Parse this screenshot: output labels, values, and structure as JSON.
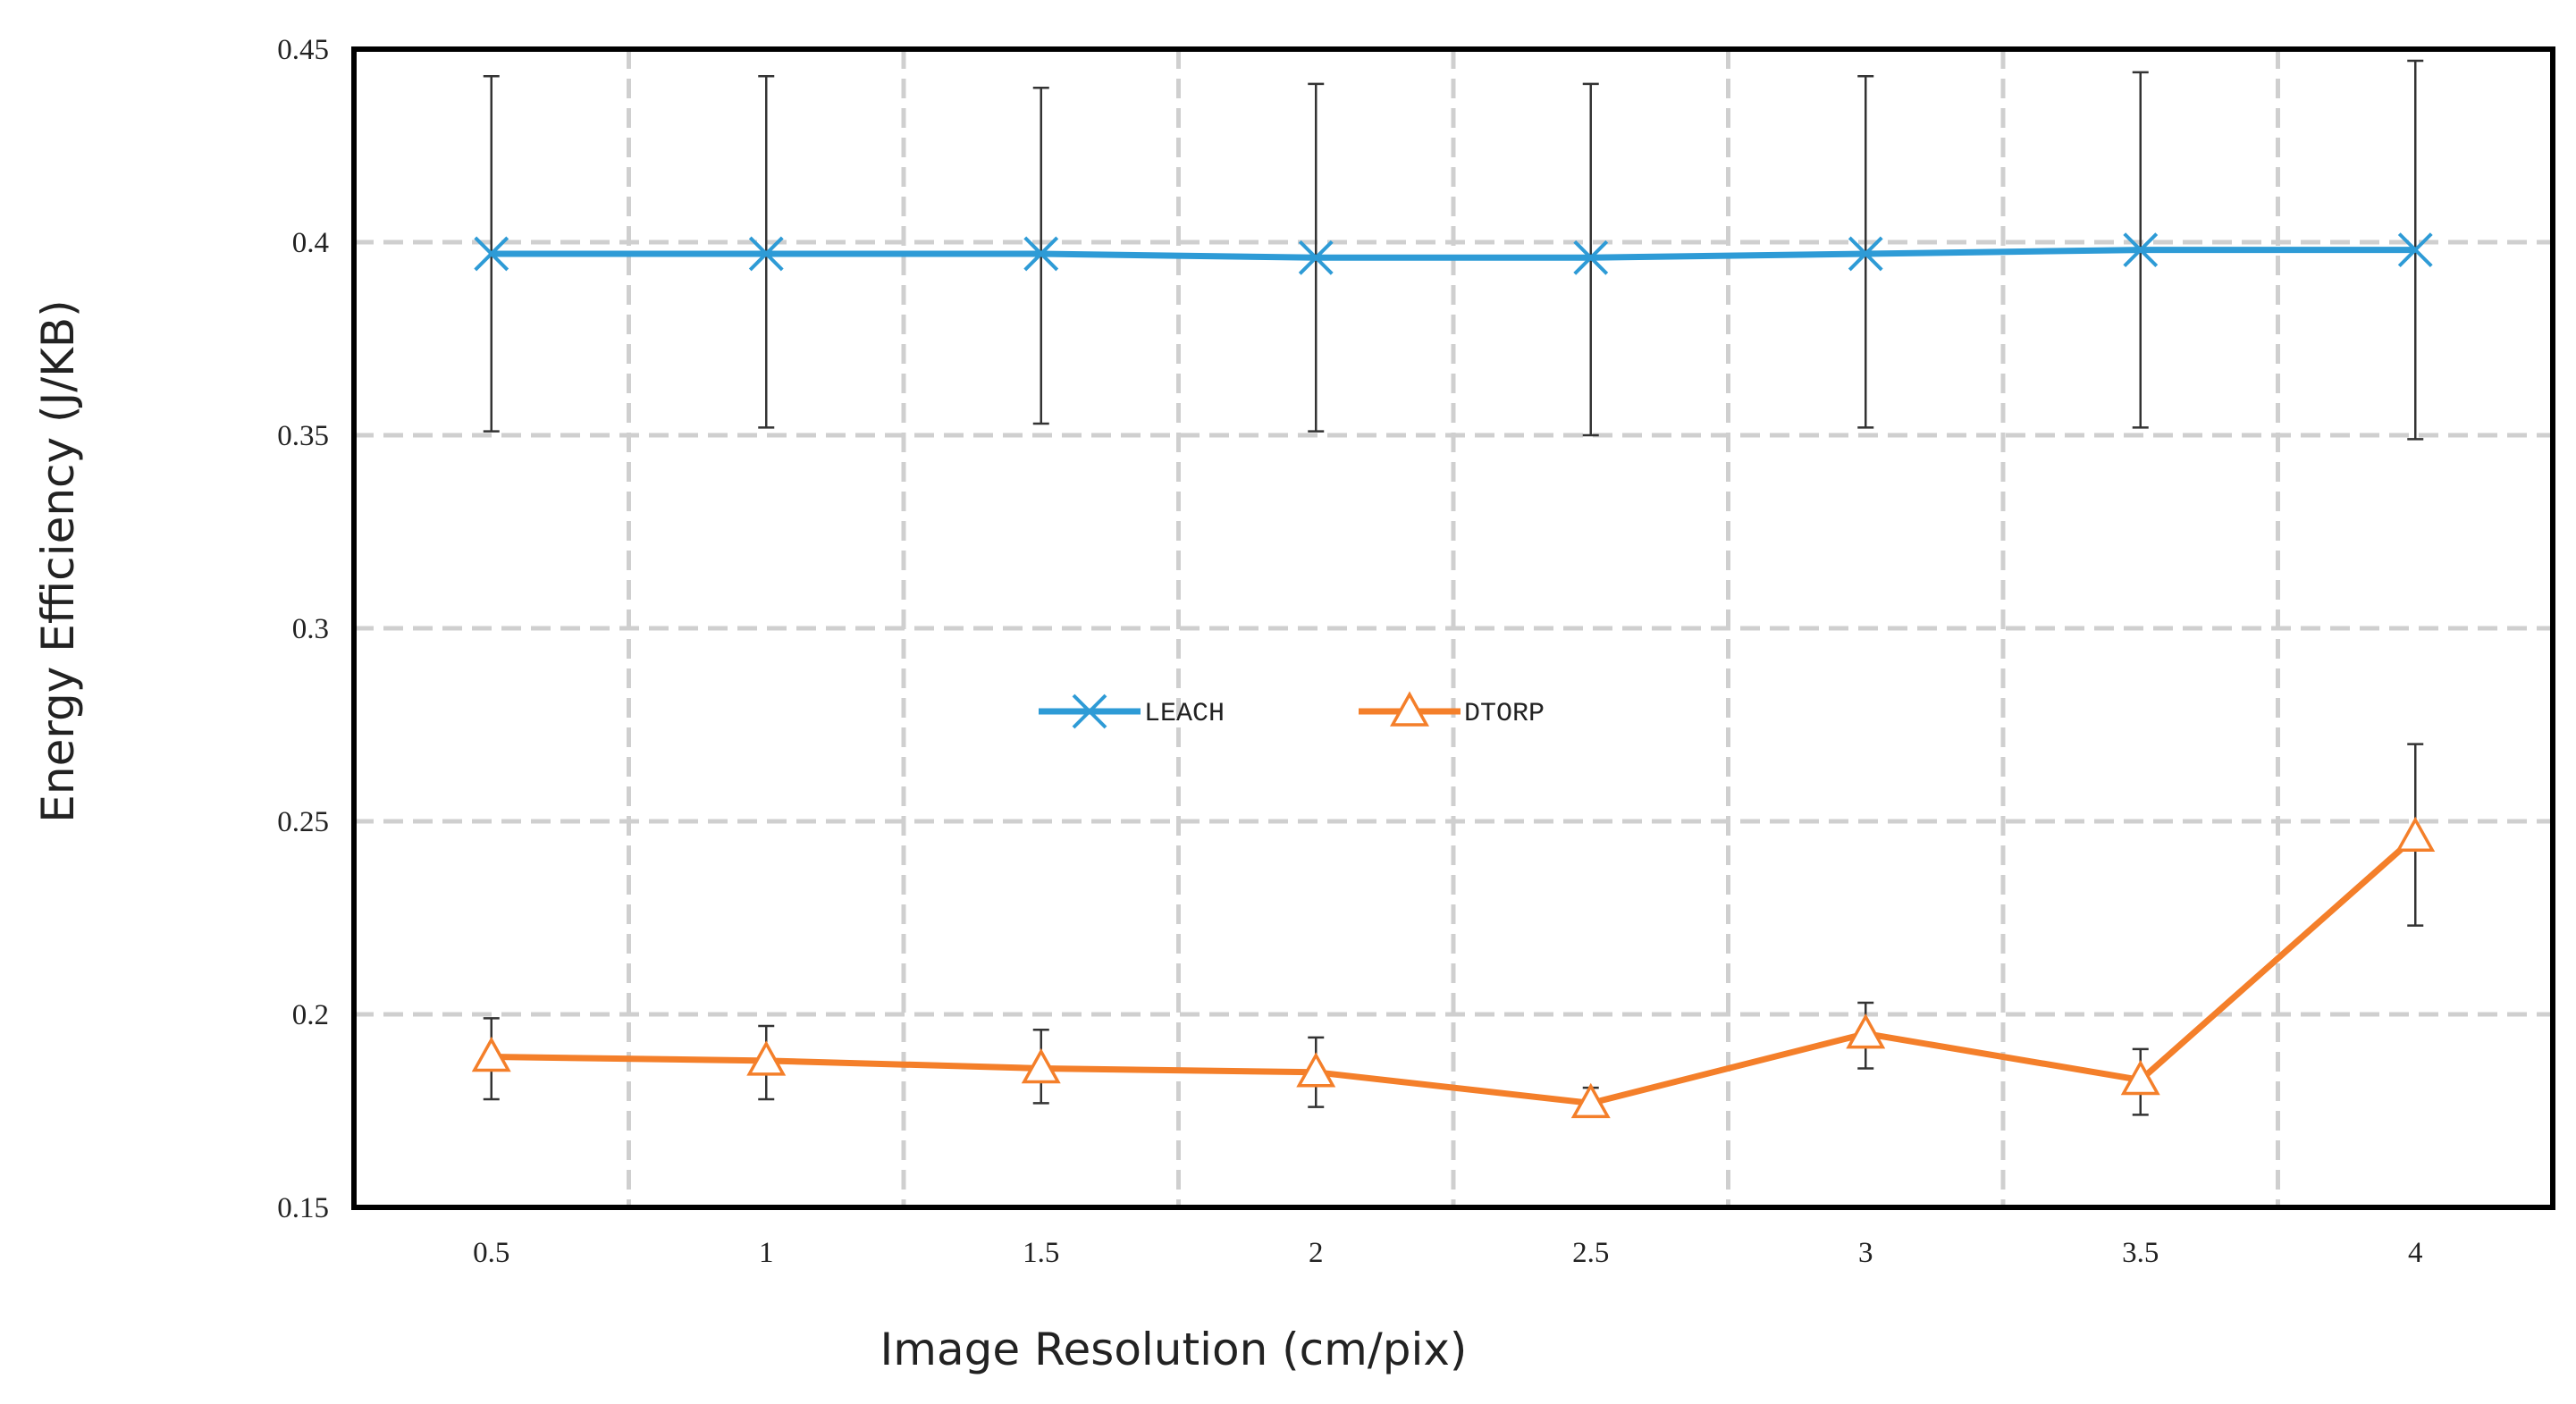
{
  "chart_data": {
    "type": "line",
    "title": "",
    "xlabel": "Image Resolution (cm/pix)",
    "ylabel": "Energy Efficiency (J/KB)",
    "categories": [
      "0.5",
      "1",
      "1.5",
      "2",
      "2.5",
      "3",
      "3.5",
      "4"
    ],
    "x": [
      0.5,
      1,
      1.5,
      2,
      2.5,
      3,
      3.5,
      4
    ],
    "ylim": [
      0.15,
      0.45
    ],
    "yticks": [
      "0.15",
      "0.2",
      "0.25",
      "0.3",
      "0.35",
      "0.4",
      "0.45"
    ],
    "ytick_values": [
      0.15,
      0.2,
      0.25,
      0.3,
      0.35,
      0.4,
      0.45
    ],
    "grid": true,
    "legend_position": "center",
    "series": [
      {
        "name": "LEACH",
        "color": "#2E9BD6",
        "marker": "x",
        "values": [
          0.397,
          0.397,
          0.397,
          0.396,
          0.396,
          0.397,
          0.398,
          0.398
        ],
        "error_low": [
          0.351,
          0.352,
          0.353,
          0.351,
          0.35,
          0.352,
          0.352,
          0.349
        ],
        "error_high": [
          0.443,
          0.443,
          0.44,
          0.441,
          0.441,
          0.443,
          0.444,
          0.447
        ]
      },
      {
        "name": "DTORP",
        "color": "#F47F2A",
        "marker": "triangle",
        "values": [
          0.189,
          0.188,
          0.186,
          0.185,
          0.177,
          0.195,
          0.183,
          0.246
        ],
        "error_low": [
          0.178,
          0.178,
          0.177,
          0.176,
          0.174,
          0.186,
          0.174,
          0.223
        ],
        "error_high": [
          0.199,
          0.197,
          0.196,
          0.194,
          0.181,
          0.203,
          0.191,
          0.27
        ]
      }
    ],
    "error_bar_color": "#333333"
  }
}
